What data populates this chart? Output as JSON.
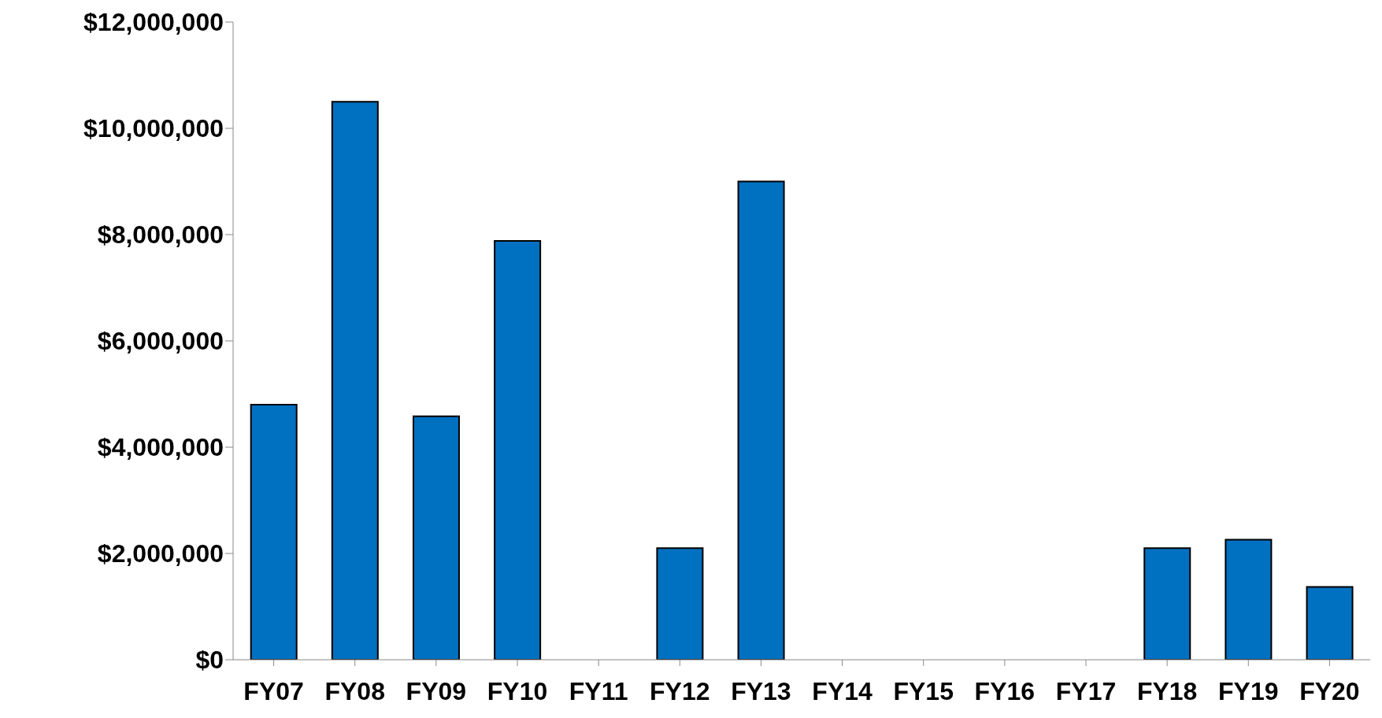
{
  "chart_data": {
    "type": "bar",
    "categories": [
      "FY07",
      "FY08",
      "FY09",
      "FY10",
      "FY11",
      "FY12",
      "FY13",
      "FY14",
      "FY15",
      "FY16",
      "FY17",
      "FY18",
      "FY19",
      "FY20"
    ],
    "values": [
      4800000,
      10500000,
      4580000,
      7880000,
      0,
      2100000,
      9000000,
      0,
      0,
      0,
      0,
      2100000,
      2260000,
      1370000
    ],
    "color": "#0070c0",
    "ylim": [
      0,
      12000000
    ],
    "yticks": [
      {
        "value": 0,
        "label": "$0"
      },
      {
        "value": 2000000,
        "label": "$2,000,000"
      },
      {
        "value": 4000000,
        "label": "$4,000,000"
      },
      {
        "value": 6000000,
        "label": "$6,000,000"
      },
      {
        "value": 8000000,
        "label": "$8,000,000"
      },
      {
        "value": 10000000,
        "label": "$10,000,000"
      },
      {
        "value": 12000000,
        "label": "$12,000,000"
      }
    ],
    "grid": false,
    "legend": false
  }
}
